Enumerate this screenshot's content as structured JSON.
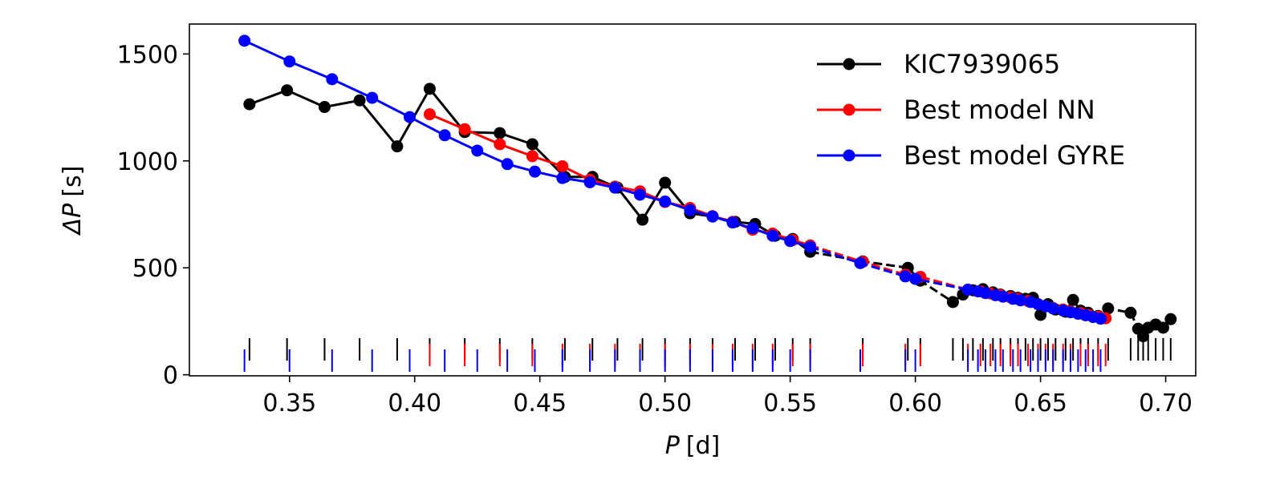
{
  "chart_data": {
    "type": "line",
    "title": "",
    "xlabel_symbol": "P",
    "xlabel_unit": "[d]",
    "ylabel_symbol": "ΔP",
    "ylabel_unit": "[s]",
    "xlim": [
      0.31,
      0.712
    ],
    "ylim": [
      -5,
      1640
    ],
    "xticks": [
      0.35,
      0.4,
      0.45,
      0.5,
      0.55,
      0.6,
      0.65,
      0.7
    ],
    "xtick_labels": [
      "0.35",
      "0.40",
      "0.45",
      "0.50",
      "0.55",
      "0.60",
      "0.65",
      "0.70"
    ],
    "yticks": [
      0,
      500,
      1000,
      1500
    ],
    "ytick_labels": [
      "0",
      "500",
      "1000",
      "1500"
    ],
    "grid": false,
    "legend_position": "top-right",
    "series": [
      {
        "name": "KIC7939065",
        "color": "#000000",
        "segments": [
          {
            "style": "solid",
            "points": [
              [
                0.334,
                1265
              ],
              [
                0.349,
                1330
              ],
              [
                0.364,
                1252
              ],
              [
                0.378,
                1283
              ],
              [
                0.393,
                1068
              ],
              [
                0.406,
                1337
              ],
              [
                0.42,
                1135
              ],
              [
                0.434,
                1130
              ],
              [
                0.447,
                1078
              ],
              [
                0.46,
                925
              ],
              [
                0.471,
                925
              ],
              [
                0.481,
                875
              ],
              [
                0.491,
                725
              ],
              [
                0.5,
                898
              ],
              [
                0.51,
                755
              ],
              [
                0.519,
                740
              ],
              [
                0.528,
                715
              ],
              [
                0.536,
                705
              ],
              [
                0.544,
                650
              ],
              [
                0.551,
                635
              ],
              [
                0.558,
                575
              ]
            ]
          },
          {
            "style": "dashed",
            "points": [
              [
                0.558,
                575
              ],
              [
                0.579,
                530
              ],
              [
                0.597,
                500
              ],
              [
                0.602,
                440
              ],
              [
                0.615,
                340
              ],
              [
                0.619,
                375
              ],
              [
                0.623,
                395
              ],
              [
                0.627,
                400
              ],
              [
                0.631,
                385
              ],
              [
                0.634,
                375
              ],
              [
                0.638,
                368
              ],
              [
                0.641,
                360
              ],
              [
                0.644,
                355
              ],
              [
                0.647,
                360
              ],
              [
                0.65,
                280
              ],
              [
                0.653,
                330
              ],
              [
                0.656,
                305
              ],
              [
                0.66,
                295
              ],
              [
                0.663,
                350
              ],
              [
                0.666,
                300
              ],
              [
                0.669,
                290
              ],
              [
                0.673,
                275
              ],
              [
                0.677,
                310
              ],
              [
                0.686,
                290
              ],
              [
                0.689,
                215
              ],
              [
                0.691,
                180
              ],
              [
                0.693,
                220
              ],
              [
                0.696,
                235
              ],
              [
                0.699,
                220
              ],
              [
                0.702,
                260
              ]
            ]
          }
        ],
        "period_ticks": [
          0.334,
          0.349,
          0.364,
          0.378,
          0.393,
          0.406,
          0.42,
          0.434,
          0.447,
          0.46,
          0.471,
          0.481,
          0.491,
          0.5,
          0.51,
          0.519,
          0.528,
          0.536,
          0.544,
          0.551,
          0.558,
          0.579,
          0.597,
          0.602,
          0.615,
          0.619,
          0.623,
          0.627,
          0.631,
          0.634,
          0.638,
          0.641,
          0.644,
          0.647,
          0.65,
          0.653,
          0.656,
          0.66,
          0.663,
          0.666,
          0.669,
          0.673,
          0.677,
          0.686,
          0.689,
          0.691,
          0.693,
          0.696,
          0.699,
          0.702
        ]
      },
      {
        "name": "Best model NN",
        "color": "#ff0000",
        "segments": [
          {
            "style": "solid",
            "points": [
              [
                0.406,
                1218
              ],
              [
                0.42,
                1148
              ],
              [
                0.434,
                1078
              ],
              [
                0.447,
                1022
              ],
              [
                0.459,
                975
              ],
              [
                0.47,
                912
              ],
              [
                0.48,
                880
              ],
              [
                0.49,
                858
              ],
              [
                0.5,
                808
              ],
              [
                0.51,
                780
              ],
              [
                0.519,
                742
              ],
              [
                0.527,
                715
              ],
              [
                0.535,
                678
              ],
              [
                0.543,
                660
              ],
              [
                0.551,
                630
              ],
              [
                0.558,
                605
              ]
            ]
          },
          {
            "style": "dashed",
            "points": [
              [
                0.558,
                605
              ],
              [
                0.579,
                528
              ],
              [
                0.596,
                468
              ],
              [
                0.602,
                458
              ],
              [
                0.621,
                398
              ],
              [
                0.626,
                390
              ],
              [
                0.63,
                380
              ],
              [
                0.634,
                372
              ],
              [
                0.638,
                362
              ],
              [
                0.641,
                355
              ],
              [
                0.645,
                345
              ],
              [
                0.649,
                330
              ],
              [
                0.652,
                320
              ],
              [
                0.655,
                312
              ],
              [
                0.659,
                305
              ],
              [
                0.662,
                296
              ],
              [
                0.666,
                288
              ],
              [
                0.669,
                280
              ],
              [
                0.673,
                272
              ],
              [
                0.676,
                264
              ]
            ]
          }
        ],
        "period_ticks": [
          0.406,
          0.42,
          0.434,
          0.447,
          0.459,
          0.47,
          0.48,
          0.49,
          0.5,
          0.51,
          0.519,
          0.527,
          0.535,
          0.543,
          0.551,
          0.558,
          0.579,
          0.596,
          0.602,
          0.621,
          0.626,
          0.63,
          0.634,
          0.638,
          0.641,
          0.645,
          0.649,
          0.652,
          0.655,
          0.659,
          0.662,
          0.666,
          0.669,
          0.673,
          0.676
        ]
      },
      {
        "name": "Best model GYRE",
        "color": "#0000ff",
        "segments": [
          {
            "style": "solid",
            "points": [
              [
                0.332,
                1562
              ],
              [
                0.35,
                1465
              ],
              [
                0.367,
                1382
              ],
              [
                0.383,
                1295
              ],
              [
                0.398,
                1205
              ],
              [
                0.412,
                1120
              ],
              [
                0.425,
                1048
              ],
              [
                0.437,
                985
              ],
              [
                0.448,
                950
              ],
              [
                0.459,
                920
              ],
              [
                0.47,
                900
              ],
              [
                0.48,
                875
              ],
              [
                0.49,
                842
              ],
              [
                0.5,
                810
              ],
              [
                0.51,
                770
              ],
              [
                0.519,
                740
              ],
              [
                0.527,
                712
              ],
              [
                0.535,
                685
              ],
              [
                0.543,
                650
              ],
              [
                0.55,
                625
              ],
              [
                0.558,
                598
              ]
            ]
          },
          {
            "style": "dashed",
            "points": [
              [
                0.558,
                598
              ],
              [
                0.578,
                522
              ],
              [
                0.596,
                460
              ],
              [
                0.6,
                448
              ],
              [
                0.621,
                398
              ],
              [
                0.625,
                390
              ],
              [
                0.628,
                382
              ],
              [
                0.632,
                372
              ],
              [
                0.635,
                365
              ],
              [
                0.639,
                355
              ],
              [
                0.642,
                348
              ],
              [
                0.646,
                340
              ],
              [
                0.649,
                330
              ],
              [
                0.652,
                320
              ],
              [
                0.655,
                310
              ],
              [
                0.659,
                300
              ],
              [
                0.662,
                292
              ],
              [
                0.665,
                285
              ],
              [
                0.668,
                278
              ],
              [
                0.671,
                270
              ],
              [
                0.674,
                262
              ]
            ]
          }
        ],
        "period_ticks": [
          0.332,
          0.35,
          0.367,
          0.383,
          0.398,
          0.412,
          0.425,
          0.437,
          0.448,
          0.459,
          0.47,
          0.48,
          0.49,
          0.5,
          0.51,
          0.519,
          0.527,
          0.535,
          0.543,
          0.55,
          0.558,
          0.578,
          0.596,
          0.6,
          0.621,
          0.625,
          0.628,
          0.632,
          0.635,
          0.639,
          0.642,
          0.646,
          0.649,
          0.652,
          0.655,
          0.659,
          0.662,
          0.665,
          0.668,
          0.671,
          0.674
        ]
      }
    ]
  }
}
